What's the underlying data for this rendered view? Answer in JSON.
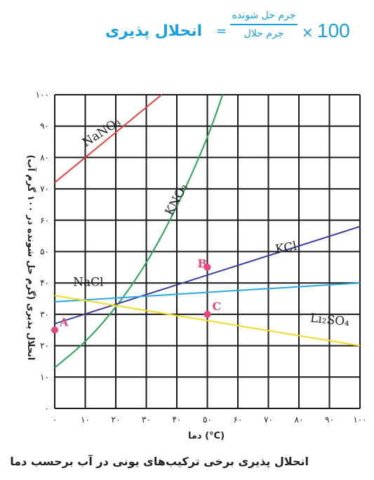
{
  "formula": {
    "percent_label": "انحلال پذیری",
    "equals": "=",
    "numerator": "جرم حل شونده",
    "denominator": "جرم حلال",
    "times": "×",
    "hundred": "100"
  },
  "caption": "انحلال پذیری برخی ترکیب‌های یونی در آب برحسب دما",
  "chart_data": {
    "type": "line",
    "xlabel": "دما (°C)",
    "ylabel": "انحلال پذیری (گرم حل شونده در ۱۰۰ گرم آب)",
    "xlim": [
      0,
      100
    ],
    "ylim": [
      0,
      100
    ],
    "x_ticks": [
      "۰",
      "۱۰",
      "۲۰",
      "۳۰",
      "۴۰",
      "۵۰",
      "۶۰",
      "۷۰",
      "۸۰",
      "۹۰",
      "۱۰۰"
    ],
    "y_ticks": [
      "۰",
      "۱۰",
      "۲۰",
      "۳۰",
      "۴۰",
      "۵۰",
      "۶۰",
      "۷۰",
      "۸۰",
      "۹۰",
      "۱۰۰"
    ],
    "grid": true,
    "series": [
      {
        "name": "NaNO₃",
        "color": "#e8403a",
        "x": [
          0,
          35
        ],
        "y": [
          72,
          100
        ]
      },
      {
        "name": "KNO₃",
        "color": "#2aa35a",
        "x": [
          0,
          10,
          20,
          30,
          40,
          50,
          55
        ],
        "y": [
          13,
          21,
          32,
          46,
          64,
          86,
          100
        ]
      },
      {
        "name": "KCl",
        "color": "#3b3f9a",
        "x": [
          0,
          100
        ],
        "y": [
          27,
          58
        ]
      },
      {
        "name": "NaCl",
        "color": "#2ba8dc",
        "x": [
          0,
          100
        ],
        "y": [
          34,
          40
        ]
      },
      {
        "name": "Li₂SO₄",
        "color": "#f2dc2a",
        "x": [
          0,
          100
        ],
        "y": [
          36,
          20
        ]
      }
    ],
    "points": [
      {
        "label": "A",
        "x": 0,
        "y": 25,
        "color": "#e5477e"
      },
      {
        "label": "B",
        "x": 50,
        "y": 45,
        "color": "#e5477e"
      },
      {
        "label": "C",
        "x": 50,
        "y": 30,
        "color": "#e5477e"
      }
    ]
  }
}
